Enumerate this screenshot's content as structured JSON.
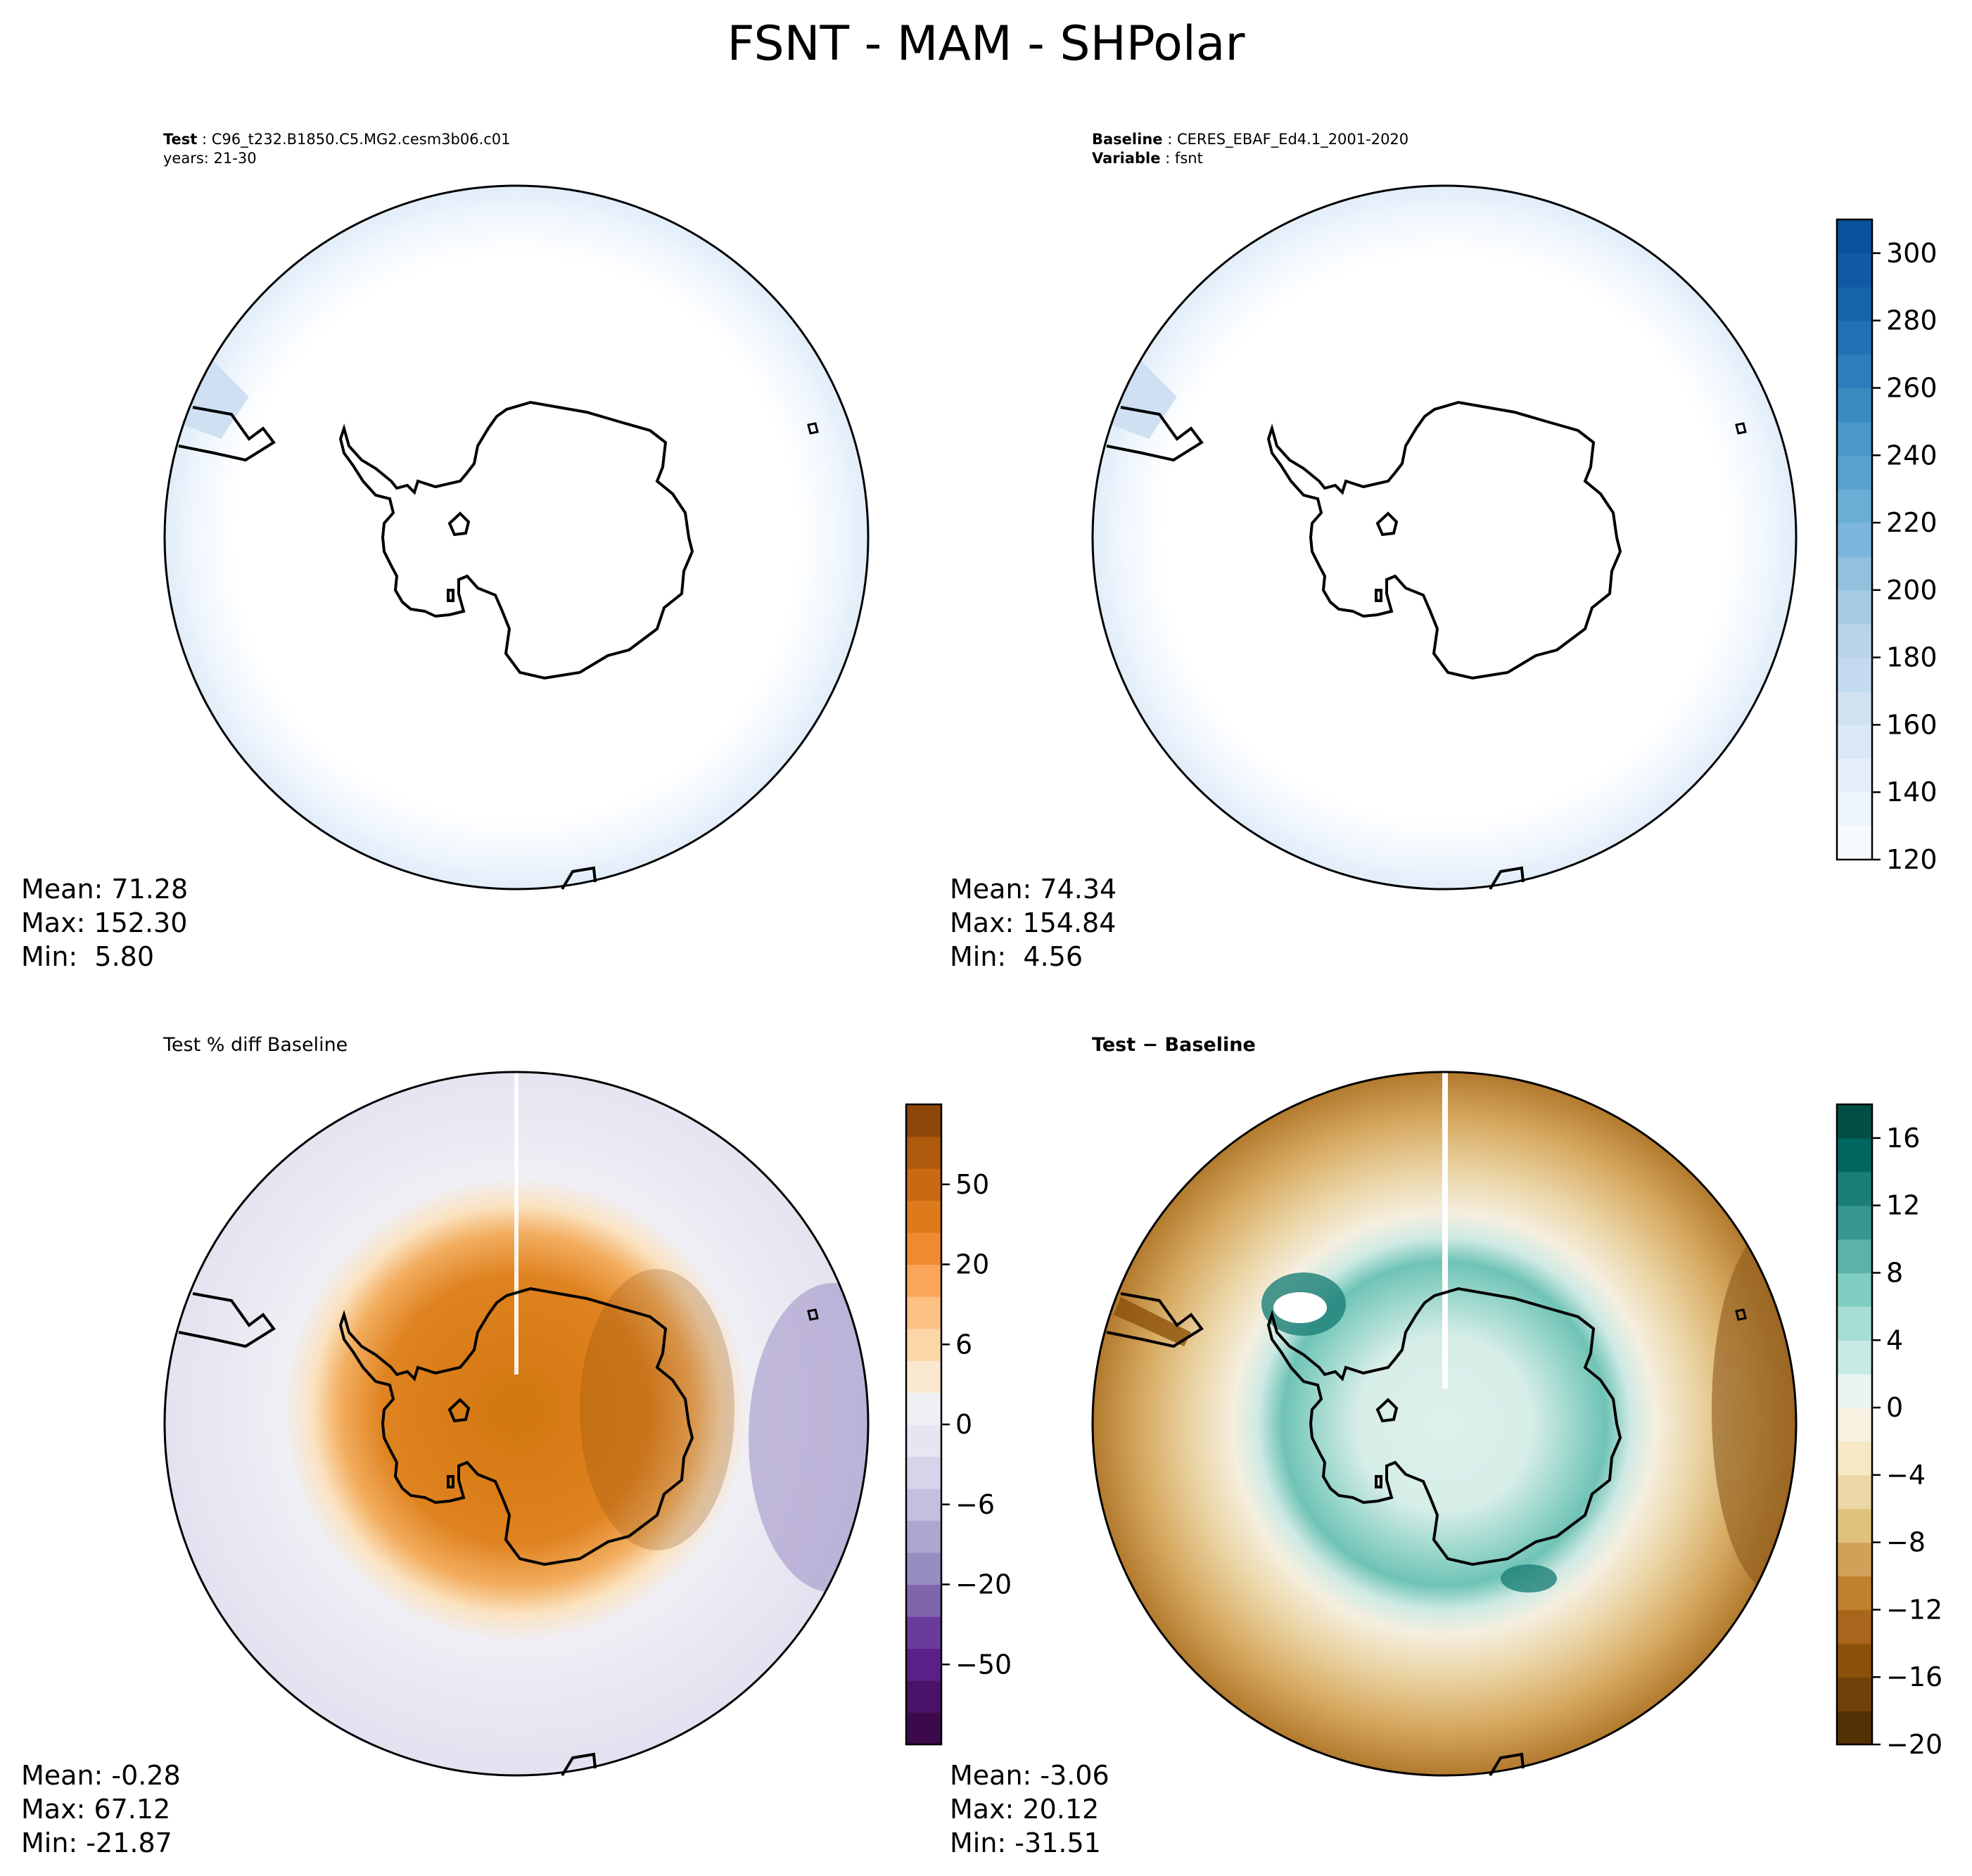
{
  "title": "FSNT - MAM - SHPolar",
  "colors": {
    "blues": [
      "#f7fbff",
      "#eef5fd",
      "#e4eff9",
      "#dae8f6",
      "#d0e1f2",
      "#c4daee",
      "#b7d4ea",
      "#a5cce3",
      "#92c1de",
      "#7db6dd",
      "#6aaed6",
      "#58a1cf",
      "#4a98c9",
      "#3a8ac2",
      "#2e7ebc",
      "#2171b5",
      "#1764ab",
      "#0f5aa3",
      "#08519c",
      "#08458a",
      "#08306b"
    ],
    "purple_orange": [
      "#3c0a4c",
      "#4a1268",
      "#5b2087",
      "#6b3a9d",
      "#7f65ac",
      "#978dc0",
      "#aca6d0",
      "#c2bfdf",
      "#d6d4ea",
      "#e6e6f2",
      "#f0f0f4",
      "#fbe8d0",
      "#fdd6a8",
      "#fdc083",
      "#faa65a",
      "#f08a2e",
      "#dd7a1c",
      "#c96a12",
      "#ae5a0c",
      "#8e4609",
      "#7b3a08"
    ],
    "brbg": [
      "#543005",
      "#704108",
      "#8c510a",
      "#a7661c",
      "#bf812d",
      "#cfa159",
      "#dfc27d",
      "#ebd7a5",
      "#f6e8c3",
      "#f7f1e2",
      "#e9f4f1",
      "#c7eae5",
      "#a6ddd5",
      "#80cdc1",
      "#5ab2a8",
      "#35978f",
      "#1c7f77",
      "#01665e",
      "#014e44"
    ]
  },
  "panels": {
    "test": {
      "label_test": "Test",
      "case_name": "C96_t232.B1850.C5.MG2.cesm3b06.c01",
      "years": "years: 21-30",
      "stats": {
        "mean": "Mean: 71.28",
        "max": "Max: 152.30",
        "min": "Min:  5.80"
      }
    },
    "baseline": {
      "label_baseline": "Baseline",
      "case_name": "CERES_EBAF_Ed4.1_2001-2020",
      "label_variable": "Variable",
      "variable": "fsnt",
      "stats": {
        "mean": "Mean: 74.34",
        "max": "Max: 154.84",
        "min": "Min:  4.56"
      }
    },
    "pctdiff": {
      "title": "Test % diff Baseline",
      "stats": {
        "mean": "Mean: -0.28",
        "max": "Max: 67.12",
        "min": "Min: -21.87"
      }
    },
    "diff": {
      "title": "Test − Baseline",
      "stats": {
        "mean": "Mean: -3.06",
        "max": "Max: 20.12",
        "min": "Min: -31.51"
      }
    }
  },
  "chart_data": [
    {
      "type": "heatmap",
      "title": "Test",
      "projection": "south-polar-stereographic",
      "colorbar": {
        "range": [
          120,
          310
        ],
        "ticks": [
          120,
          140,
          160,
          180,
          200,
          220,
          240,
          260,
          280,
          300
        ],
        "levels": 19
      },
      "mean": 71.28,
      "max": 152.3,
      "min": 5.8
    },
    {
      "type": "heatmap",
      "title": "Baseline",
      "projection": "south-polar-stereographic",
      "colorbar": {
        "range": [
          120,
          310
        ],
        "ticks": [
          120,
          140,
          160,
          180,
          200,
          220,
          240,
          260,
          280,
          300
        ],
        "levels": 19
      },
      "mean": 74.34,
      "max": 154.84,
      "min": 4.56
    },
    {
      "type": "heatmap",
      "title": "Test % diff Baseline",
      "projection": "south-polar-stereographic",
      "colorbar": {
        "ticks": [
          -50,
          -20,
          -6,
          0,
          6,
          20,
          50
        ],
        "levels": 20
      },
      "mean": -0.28,
      "max": 67.12,
      "min": -21.87
    },
    {
      "type": "heatmap",
      "title": "Test − Baseline",
      "projection": "south-polar-stereographic",
      "colorbar": {
        "range": [
          -20,
          18
        ],
        "ticks": [
          -20,
          -16,
          -12,
          -8,
          -4,
          0,
          4,
          8,
          12,
          16
        ],
        "levels": 19
      },
      "mean": -3.06,
      "max": 20.12,
      "min": -31.51
    }
  ]
}
